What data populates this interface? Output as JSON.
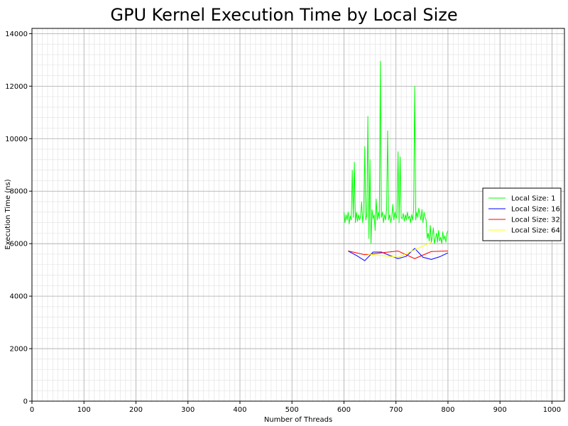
{
  "chart_data": {
    "type": "line",
    "title": "GPU Kernel Execution Time by Local Size",
    "xlabel": "Number of Threads",
    "ylabel": "Execution Time (ns)",
    "xlim": [
      0,
      1024
    ],
    "ylim": [
      0,
      14200
    ],
    "x_ticks": [
      0,
      100,
      200,
      300,
      400,
      500,
      600,
      700,
      800,
      900,
      1000
    ],
    "y_ticks": [
      0,
      2000,
      4000,
      6000,
      8000,
      10000,
      12000,
      14000
    ],
    "grid": true,
    "legend_position": "right",
    "series": [
      {
        "name": "Local Size: 1",
        "color": "#00ff00",
        "x": [
          600,
          602,
          604,
          606,
          608,
          610,
          612,
          614,
          616,
          618,
          620,
          622,
          624,
          626,
          628,
          630,
          632,
          634,
          636,
          638,
          640,
          642,
          644,
          646,
          648,
          650,
          652,
          654,
          656,
          658,
          660,
          662,
          664,
          666,
          668,
          670,
          672,
          674,
          676,
          678,
          680,
          682,
          684,
          686,
          688,
          690,
          692,
          694,
          696,
          698,
          700,
          702,
          704,
          706,
          708,
          710,
          712,
          714,
          716,
          718,
          720,
          722,
          724,
          726,
          728,
          730,
          732,
          734,
          736,
          738,
          740,
          742,
          744,
          746,
          748,
          750,
          752,
          754,
          756,
          758,
          760,
          762,
          764,
          766,
          768,
          770,
          772,
          774,
          776,
          778,
          780,
          782,
          784,
          786,
          788,
          790,
          792,
          794,
          796,
          798,
          800
        ],
        "y": [
          7200,
          6800,
          7100,
          6900,
          7200,
          6750,
          7050,
          6900,
          8800,
          7000,
          9100,
          6800,
          7200,
          6850,
          7100,
          6900,
          7050,
          7600,
          6800,
          7200,
          9700,
          6900,
          7100,
          10850,
          6200,
          9200,
          6000,
          7300,
          6950,
          7100,
          6500,
          7700,
          6900,
          7200,
          6950,
          12950,
          7000,
          7200,
          6800,
          7100,
          6900,
          7300,
          10300,
          6900,
          7100,
          6800,
          7000,
          7500,
          6900,
          7200,
          6950,
          7100,
          9500,
          6800,
          9300,
          7000,
          6950,
          7150,
          6850,
          7100,
          6900,
          7200,
          6950,
          7050,
          6800,
          7100,
          6900,
          7300,
          12000,
          6900,
          7200,
          7000,
          7350,
          7100,
          6900,
          7300,
          6800,
          7200,
          7000,
          6900,
          6200,
          6400,
          6100,
          6700,
          6050,
          6300,
          6600,
          6000,
          6200,
          6400,
          6050,
          6500,
          6100,
          6250,
          6000,
          6450,
          6150,
          6300,
          6050,
          6400,
          6500
        ]
      },
      {
        "name": "Local Size: 16",
        "color": "#0000ff",
        "x": [
          608,
          624,
          640,
          656,
          672,
          688,
          704,
          720,
          736,
          752,
          768,
          784,
          800
        ],
        "y": [
          5720,
          5550,
          5350,
          5680,
          5680,
          5550,
          5430,
          5520,
          5820,
          5480,
          5400,
          5500,
          5650
        ]
      },
      {
        "name": "Local Size: 32",
        "color": "#ff0000",
        "x": [
          608,
          640,
          672,
          704,
          736,
          768,
          800
        ],
        "y": [
          5720,
          5580,
          5650,
          5720,
          5430,
          5700,
          5720
        ]
      },
      {
        "name": "Local Size: 64",
        "color": "#ffff00",
        "x": [
          640,
          704,
          768
        ],
        "y": [
          5620,
          5480,
          6050
        ]
      }
    ]
  }
}
